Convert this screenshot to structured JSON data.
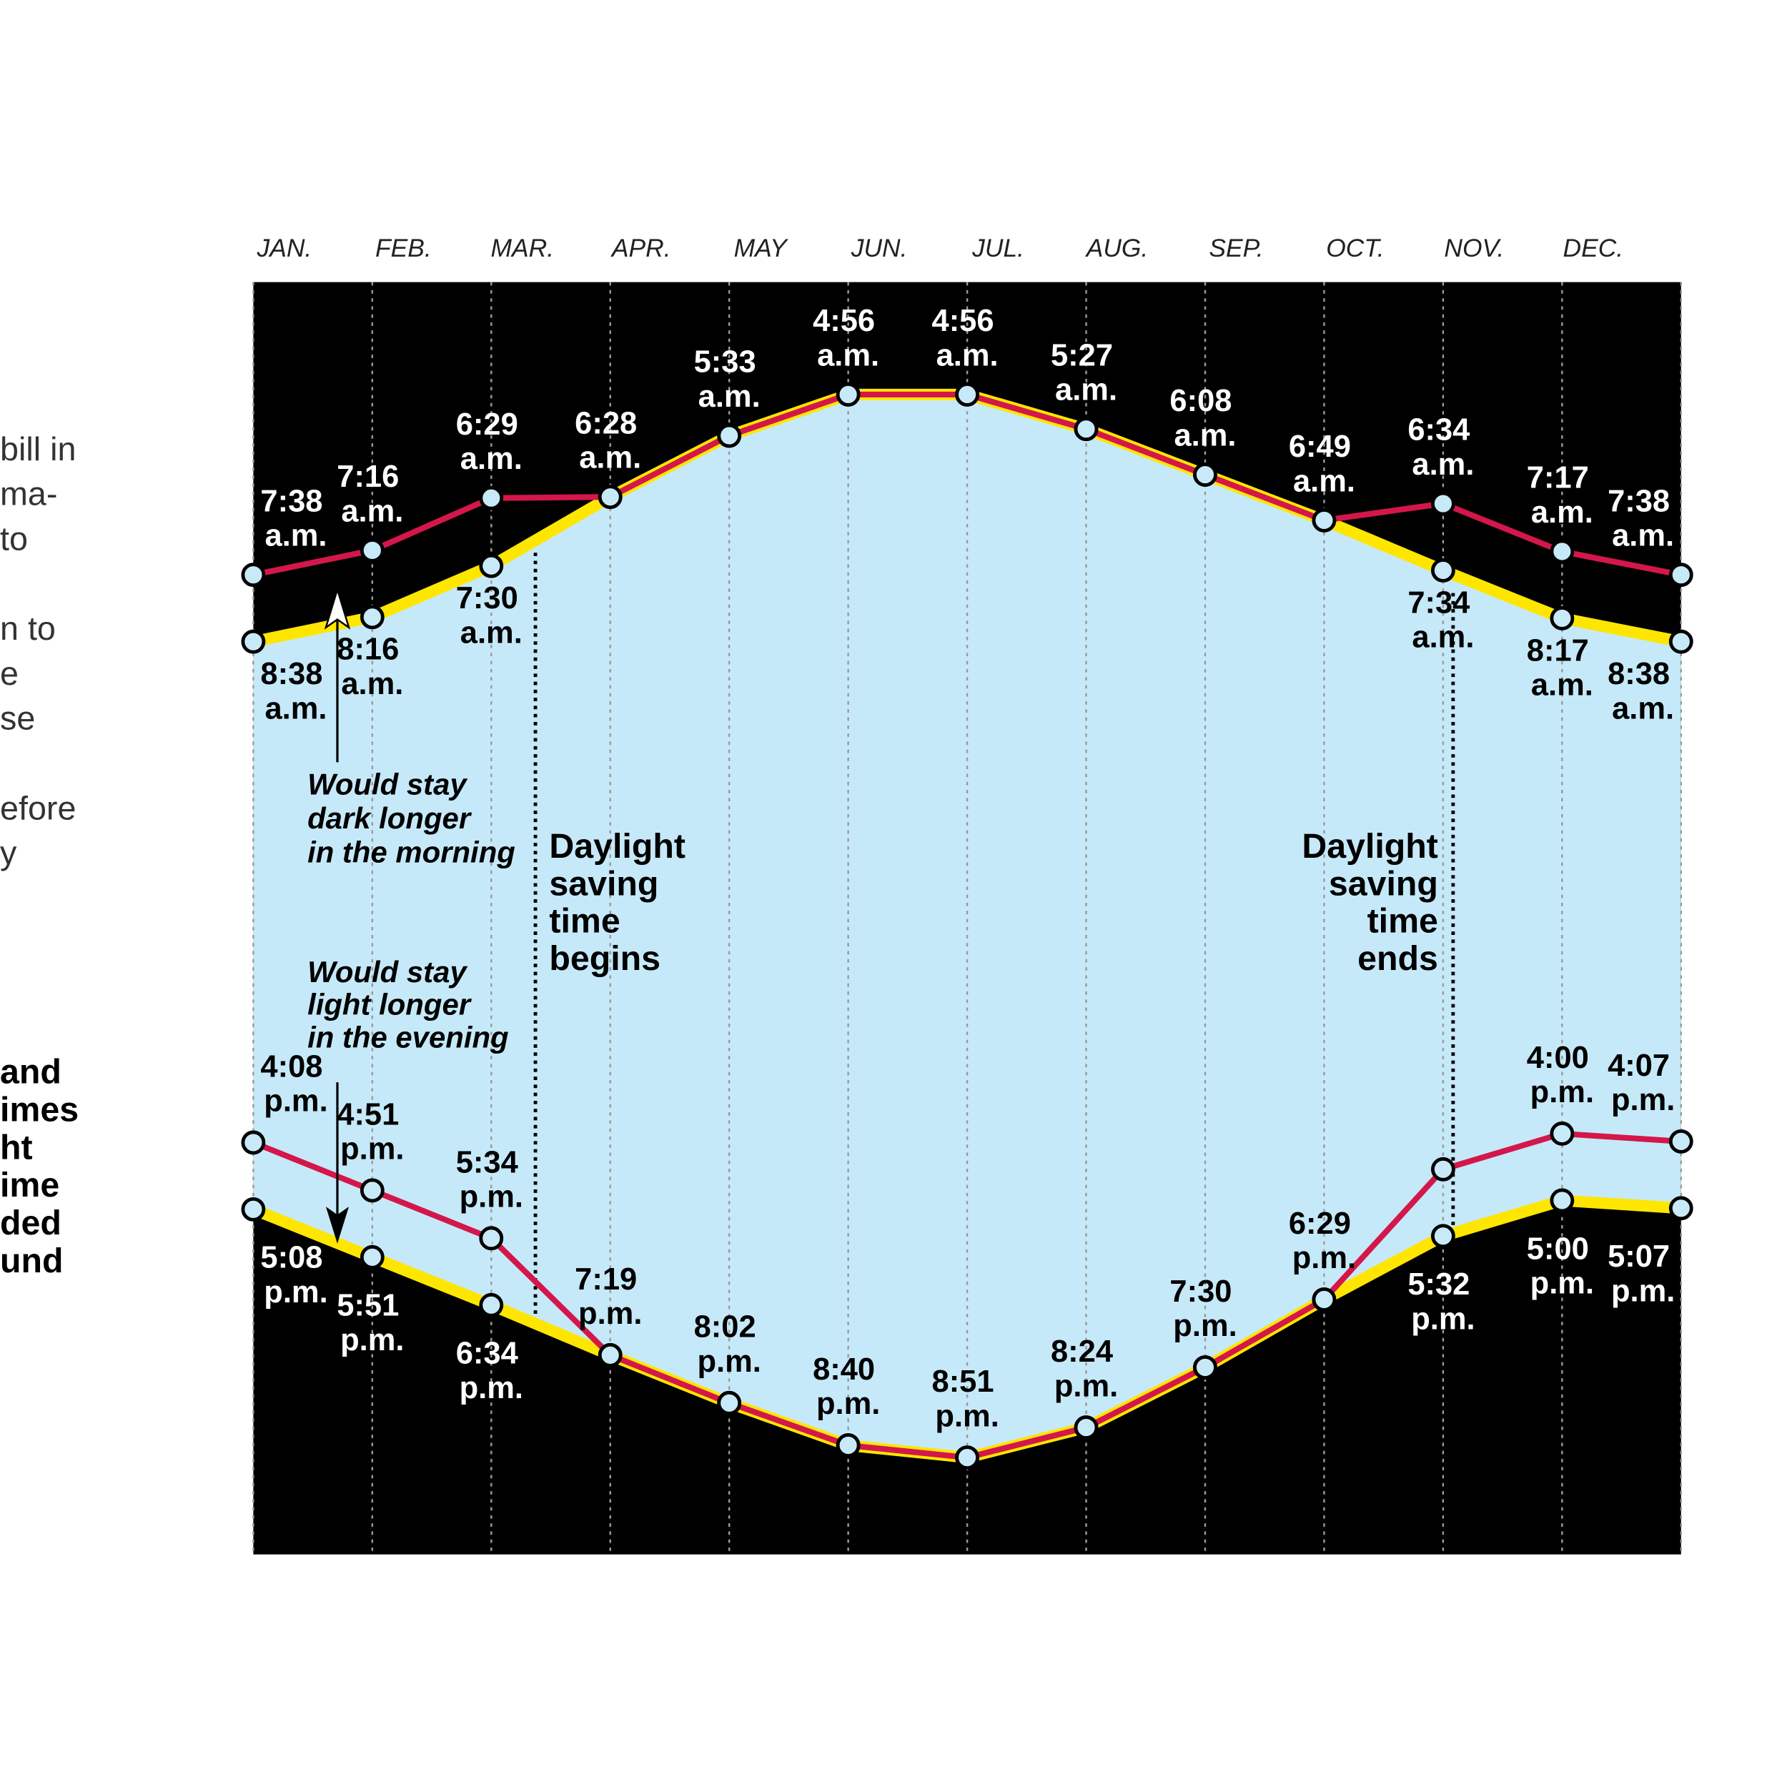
{
  "chart_data": {
    "type": "line",
    "categories": [
      "JAN.",
      "FEB.",
      "MAR.",
      "APR.",
      "MAY",
      "JUN.",
      "JUL.",
      "AUG.",
      "SEP.",
      "OCT.",
      "NOV.",
      "DEC.",
      null
    ],
    "ylim": [
      195,
      1338
    ],
    "y_reversed": true,
    "grid": true,
    "area_color": "#c6e9f9",
    "series": [
      {
        "color": "#ffe600",
        "values": [
          518,
          496,
          450,
          388,
          333,
          296,
          296,
          327,
          368,
          409,
          454,
          497,
          518
        ],
        "value_labels": [
          "8:38 a.m.",
          "8:16 a.m.",
          "7:30 a.m.",
          null,
          null,
          null,
          null,
          null,
          null,
          null,
          "7:34 a.m.",
          "8:17 a.m.",
          "8:38 a.m."
        ]
      },
      {
        "color": "#d4174a",
        "values": [
          458,
          436,
          389,
          388,
          333,
          296,
          296,
          327,
          368,
          409,
          394,
          437,
          458
        ],
        "value_labels": [
          "7:38 a.m.",
          "7:16 a.m.",
          "6:29 a.m.",
          "6:28 a.m.",
          "5:33 a.m.",
          "4:56 a.m.",
          "4:56 a.m.",
          "5:27 a.m.",
          "6:08 a.m.",
          "6:49 a.m.",
          "6:34 a.m.",
          "7:17 a.m.",
          "7:38 a.m."
        ]
      },
      {
        "color": "#ffe600",
        "values": [
          1028,
          1071,
          1114,
          1159,
          1202,
          1240,
          1251,
          1224,
          1170,
          1109,
          1052,
          1020,
          1027
        ],
        "value_labels": [
          "5:08 p.m.",
          "5:51 p.m.",
          "6:34 p.m.",
          null,
          null,
          null,
          null,
          null,
          null,
          null,
          "5:32 p.m.",
          "5:00 p.m.",
          "5:07 p.m."
        ]
      },
      {
        "color": "#d4174a",
        "values": [
          968,
          1011,
          1054,
          1159,
          1202,
          1240,
          1251,
          1224,
          1170,
          1109,
          992,
          960,
          967
        ],
        "value_labels": [
          "4:08 p.m.",
          "4:51 p.m.",
          "5:34 p.m.",
          "7:19 p.m.",
          "8:02 p.m.",
          "8:40 p.m.",
          "8:51 p.m.",
          "8:24 p.m.",
          "7:30 p.m.",
          "6:29 p.m.",
          null,
          "4:00 p.m.",
          "4:07 p.m."
        ]
      }
    ],
    "annotations": [
      {
        "lines": [
          "Would stay",
          "dark longer",
          "in the morning"
        ]
      },
      {
        "lines": [
          "Would stay",
          "light longer",
          "in the evening"
        ]
      },
      {
        "lines": [
          "Daylight",
          "saving",
          "time",
          "begins"
        ]
      },
      {
        "lines": [
          "Daylight",
          "saving",
          "time",
          "ends"
        ]
      }
    ]
  },
  "side_text": {
    "lines": [
      "bill in",
      "ma-",
      "to",
      "n to",
      "e",
      "se",
      "efore",
      "y"
    ],
    "bold_lines": [
      "and",
      "imes",
      "ht",
      "ime",
      "ded",
      "und"
    ]
  }
}
